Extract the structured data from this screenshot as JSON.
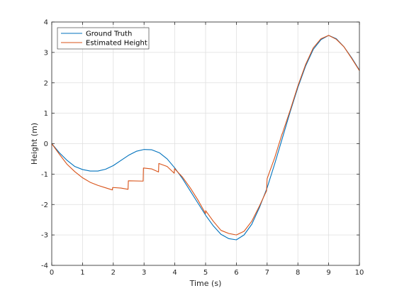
{
  "chart_data": {
    "type": "line",
    "xlabel": "Time (s)",
    "ylabel": "Height (m)",
    "xlim": [
      0,
      10
    ],
    "ylim": [
      -4,
      4
    ],
    "xticks": [
      0,
      1,
      2,
      3,
      4,
      5,
      6,
      7,
      8,
      9,
      10
    ],
    "yticks": [
      -4,
      -3,
      -2,
      -1,
      0,
      1,
      2,
      3,
      4
    ],
    "grid": true,
    "legend_position": "top-left",
    "series": [
      {
        "name": "Ground Truth",
        "color": "#0072BD",
        "x": [
          0,
          0.25,
          0.5,
          0.75,
          1.0,
          1.25,
          1.5,
          1.75,
          2.0,
          2.25,
          2.5,
          2.75,
          3.0,
          3.25,
          3.5,
          3.75,
          4.0,
          4.25,
          4.5,
          4.75,
          5.0,
          5.25,
          5.5,
          5.75,
          6.0,
          6.25,
          6.5,
          6.75,
          7.0,
          7.25,
          7.5,
          7.75,
          8.0,
          8.25,
          8.5,
          8.75,
          9.0,
          9.25,
          9.5,
          9.75,
          10.0
        ],
        "y": [
          0,
          -0.3,
          -0.55,
          -0.75,
          -0.85,
          -0.9,
          -0.9,
          -0.84,
          -0.72,
          -0.55,
          -0.38,
          -0.25,
          -0.19,
          -0.2,
          -0.3,
          -0.5,
          -0.8,
          -1.15,
          -1.55,
          -1.95,
          -2.35,
          -2.7,
          -2.98,
          -3.12,
          -3.16,
          -3.0,
          -2.65,
          -2.1,
          -1.45,
          -0.65,
          0.2,
          1.05,
          1.85,
          2.55,
          3.1,
          3.42,
          3.56,
          3.45,
          3.18,
          2.82,
          2.42
        ]
      },
      {
        "name": "Estimated Height",
        "color": "#D95319",
        "x": [
          0,
          0.25,
          0.5,
          0.75,
          1.0,
          1.25,
          1.5,
          1.75,
          1.97,
          1.98,
          2.25,
          2.48,
          2.49,
          2.97,
          2.98,
          3.25,
          3.47,
          3.48,
          3.75,
          3.98,
          3.99,
          4.25,
          4.5,
          4.75,
          5.0,
          5.001,
          5.25,
          5.5,
          5.75,
          6.0,
          6.25,
          6.5,
          6.75,
          6.98,
          7.0,
          7.25,
          7.48,
          7.5,
          7.75,
          8.0,
          8.25,
          8.5,
          8.75,
          9.0,
          9.25,
          9.5,
          9.75,
          10.0
        ],
        "y": [
          0,
          -0.35,
          -0.68,
          -0.92,
          -1.12,
          -1.27,
          -1.37,
          -1.45,
          -1.52,
          -1.44,
          -1.46,
          -1.5,
          -1.22,
          -1.23,
          -0.8,
          -0.83,
          -0.93,
          -0.65,
          -0.75,
          -0.97,
          -0.82,
          -1.1,
          -1.45,
          -1.85,
          -2.3,
          -2.2,
          -2.55,
          -2.85,
          -2.95,
          -3.0,
          -2.88,
          -2.55,
          -2.05,
          -1.55,
          -1.15,
          -0.45,
          0.3,
          0.35,
          1.1,
          1.9,
          2.6,
          3.15,
          3.45,
          3.56,
          3.43,
          3.18,
          2.8,
          2.4
        ]
      }
    ]
  }
}
